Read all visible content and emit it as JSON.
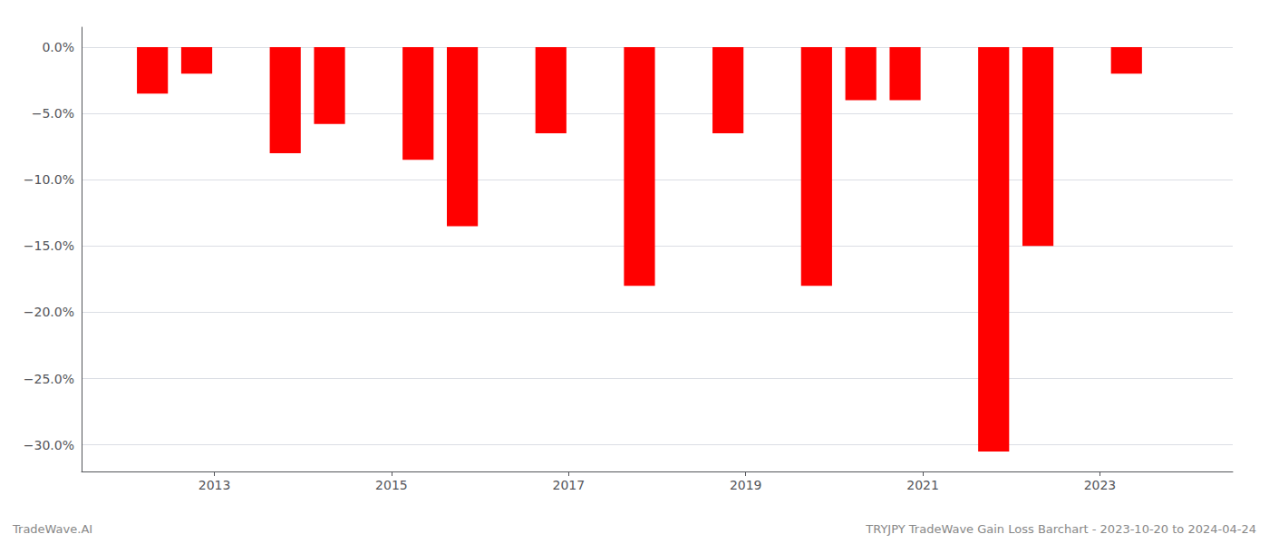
{
  "chart_data": {
    "type": "bar",
    "x": [
      2012.3,
      2012.8,
      2013.8,
      2014.3,
      2015.3,
      2015.8,
      2016.8,
      2017.8,
      2018.8,
      2019.8,
      2020.3,
      2020.8,
      2021.8,
      2022.3,
      2023.3
    ],
    "values": [
      -3.5,
      -2.0,
      -8.0,
      -5.8,
      -8.5,
      -13.5,
      -6.5,
      -18.0,
      -6.5,
      -18.0,
      -4.0,
      -4.0,
      -30.5,
      -15.0,
      -2.0
    ],
    "color": "#FF0000",
    "xlim": [
      2011.5,
      2024.5
    ],
    "xticks": [
      2013,
      2015,
      2017,
      2019,
      2021,
      2023
    ],
    "ylim": [
      -32,
      1.5
    ],
    "yticks": [
      {
        "value": 0.0,
        "label": "0.0%"
      },
      {
        "value": -5.0,
        "label": "−5.0%"
      },
      {
        "value": -10.0,
        "label": "−10.0%"
      },
      {
        "value": -15.0,
        "label": "−15.0%"
      },
      {
        "value": -20.0,
        "label": "−20.0%"
      },
      {
        "value": -25.0,
        "label": "−25.0%"
      },
      {
        "value": -30.0,
        "label": "−30.0%"
      }
    ],
    "grid": true,
    "annotations": [
      "TradeWave.AI",
      "TRYJPY TradeWave Gain Loss Barchart - 2023-10-20 to 2024-04-24"
    ]
  }
}
